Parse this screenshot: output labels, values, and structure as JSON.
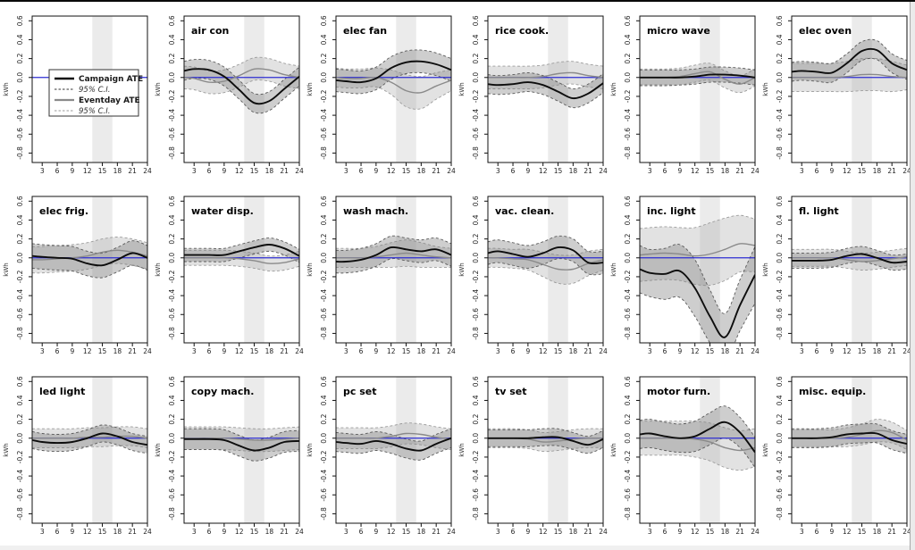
{
  "figure": {
    "description": "Hourly average treatment effects on appliance electricity use",
    "colors": {
      "campaign_line": "#0d0d0d",
      "campaign_ci_edge": "#5a5a5a",
      "campaign_ci_fill": "rgba(125,125,125,0.38)",
      "eventday_line": "#8a8a8a",
      "eventday_ci_edge": "#9c9c9c",
      "eventday_ci_fill": "rgba(178,178,178,0.38)",
      "zero_line": "#2d2dd2",
      "shade_band": "rgba(210,210,210,0.45)",
      "frame": "#111111"
    }
  },
  "chart_data": {
    "type": "line",
    "x": [
      1,
      3,
      6,
      9,
      12,
      15,
      18,
      21,
      24
    ],
    "xlim": [
      1,
      24
    ],
    "ylim": [
      -0.9,
      0.65
    ],
    "xticks": [
      "3",
      "6",
      "9",
      "12",
      "15",
      "18",
      "21",
      "24"
    ],
    "yticks": [
      "0.6",
      "0.4",
      "0.2",
      "0.0",
      "-0.2",
      "-0.4",
      "-0.6",
      "-0.8"
    ],
    "ylabel": "kWh",
    "grid": false,
    "shaded_band_x": [
      13,
      17
    ],
    "legend": {
      "position": "first-panel",
      "items": [
        {
          "label": "Campaign ATE",
          "style": "solid-black"
        },
        {
          "label": "95% C.I.",
          "style": "dashed-black"
        },
        {
          "label": "Eventday ATE",
          "style": "solid-gray"
        },
        {
          "label": "95% C.I.",
          "style": "dashed-gray"
        }
      ]
    },
    "series_names": [
      "Campaign ATE",
      "Eventday ATE"
    ],
    "panels": [
      {
        "title": "air con",
        "campaign": [
          0.07,
          0.09,
          0.08,
          0.01,
          -0.13,
          -0.27,
          -0.25,
          -0.12,
          0.01
        ],
        "campaign_ci": 0.1,
        "eventday": [
          0.0,
          -0.01,
          -0.05,
          -0.04,
          0.02,
          0.09,
          0.08,
          0.03,
          0.0
        ],
        "eventday_ci": 0.12
      },
      {
        "title": "elec fan",
        "campaign": [
          -0.03,
          -0.04,
          -0.05,
          -0.01,
          0.1,
          0.16,
          0.17,
          0.14,
          0.08
        ],
        "campaign_ci": 0.12,
        "eventday": [
          0.0,
          -0.01,
          -0.01,
          0.0,
          -0.05,
          -0.14,
          -0.16,
          -0.09,
          -0.03
        ],
        "eventday_ci": [
          0.1,
          0.1,
          0.1,
          0.1,
          0.13,
          0.17,
          0.17,
          0.14,
          0.11
        ]
      },
      {
        "title": "rice cook.",
        "campaign": [
          -0.07,
          -0.08,
          -0.07,
          -0.05,
          -0.08,
          -0.15,
          -0.22,
          -0.17,
          -0.06
        ],
        "campaign_ci": 0.1,
        "eventday": [
          0.0,
          0.0,
          0.0,
          0.0,
          0.01,
          0.04,
          0.05,
          0.02,
          0.0
        ],
        "eventday_ci": 0.12
      },
      {
        "title": "micro wave",
        "campaign": [
          0.0,
          0.0,
          0.0,
          0.0,
          0.01,
          0.03,
          0.03,
          0.02,
          0.0
        ],
        "campaign_ci": 0.08,
        "eventday": [
          0.0,
          0.0,
          0.0,
          0.01,
          0.04,
          0.06,
          -0.02,
          -0.07,
          0.0
        ],
        "eventday_ci": 0.09
      },
      {
        "title": "elec oven",
        "campaign": [
          0.06,
          0.07,
          0.06,
          0.05,
          0.15,
          0.28,
          0.29,
          0.15,
          0.08
        ],
        "campaign_ci": 0.1,
        "eventday": [
          0.0,
          0.0,
          0.0,
          0.0,
          0.01,
          0.03,
          0.03,
          0.01,
          0.0
        ],
        "eventday_ci": [
          0.15,
          0.15,
          0.15,
          0.15,
          0.16,
          0.17,
          0.17,
          0.16,
          0.13
        ]
      },
      {
        "title": "elec frig.",
        "campaign": [
          0.02,
          0.01,
          0.0,
          -0.01,
          -0.06,
          -0.08,
          -0.02,
          0.05,
          0.0
        ],
        "campaign_ci": 0.13,
        "eventday": [
          -0.02,
          -0.02,
          -0.01,
          0.0,
          0.02,
          0.06,
          0.08,
          0.06,
          0.02
        ],
        "eventday_ci": 0.14
      },
      {
        "title": "water disp.",
        "campaign": [
          0.03,
          0.03,
          0.03,
          0.03,
          0.07,
          0.11,
          0.14,
          0.1,
          0.02
        ],
        "campaign_ci": 0.07,
        "eventday": [
          0.0,
          0.0,
          0.0,
          0.0,
          -0.01,
          -0.03,
          -0.06,
          -0.05,
          -0.01
        ],
        "eventday_ci": 0.08
      },
      {
        "title": "wash mach.",
        "campaign": [
          -0.04,
          -0.04,
          -0.02,
          0.03,
          0.11,
          0.09,
          0.07,
          0.09,
          0.03
        ],
        "campaign_ci": 0.12,
        "eventday": [
          0.0,
          0.0,
          0.0,
          0.01,
          0.03,
          0.05,
          0.03,
          0.01,
          0.0
        ],
        "eventday_ci": [
          0.1,
          0.1,
          0.1,
          0.11,
          0.13,
          0.14,
          0.13,
          0.11,
          0.1
        ]
      },
      {
        "title": "vac. clean.",
        "campaign": [
          0.05,
          0.07,
          0.04,
          0.01,
          0.05,
          0.11,
          0.08,
          -0.05,
          -0.05
        ],
        "campaign_ci": 0.12,
        "eventday": [
          0.0,
          0.0,
          -0.01,
          -0.02,
          -0.07,
          -0.12,
          -0.12,
          -0.06,
          -0.02
        ],
        "eventday_ci": [
          0.1,
          0.1,
          0.1,
          0.11,
          0.13,
          0.15,
          0.15,
          0.13,
          0.11
        ]
      },
      {
        "title": "inc. light",
        "campaign": [
          -0.12,
          -0.16,
          -0.17,
          -0.14,
          -0.32,
          -0.62,
          -0.84,
          -0.5,
          -0.18
        ],
        "campaign_ci": [
          0.25,
          0.25,
          0.27,
          0.28,
          0.3,
          0.28,
          0.25,
          0.27,
          0.3
        ],
        "eventday": [
          0.03,
          0.04,
          0.05,
          0.04,
          0.02,
          0.04,
          0.09,
          0.15,
          0.13
        ],
        "eventday_ci": [
          0.28,
          0.28,
          0.28,
          0.28,
          0.3,
          0.33,
          0.33,
          0.3,
          0.28
        ]
      },
      {
        "title": "fl. light",
        "campaign": [
          -0.03,
          -0.03,
          -0.03,
          -0.02,
          0.02,
          0.04,
          0.0,
          -0.05,
          -0.04
        ],
        "campaign_ci": 0.08,
        "eventday": [
          0.0,
          0.0,
          0.0,
          0.0,
          -0.02,
          -0.04,
          -0.03,
          -0.01,
          0.01
        ],
        "eventday_ci": 0.09
      },
      {
        "title": "led light",
        "campaign": [
          -0.02,
          -0.04,
          -0.05,
          -0.04,
          0.0,
          0.05,
          0.02,
          -0.04,
          -0.07
        ],
        "campaign_ci": 0.09,
        "eventday": [
          0.0,
          0.0,
          0.0,
          0.0,
          0.01,
          0.01,
          0.02,
          0.02,
          0.0
        ],
        "eventday_ci": 0.1
      },
      {
        "title": "copy mach.",
        "campaign": [
          -0.01,
          -0.01,
          -0.01,
          -0.02,
          -0.08,
          -0.13,
          -0.1,
          -0.04,
          -0.03
        ],
        "campaign_ci": 0.11,
        "eventday": [
          0.0,
          0.0,
          0.0,
          0.0,
          -0.01,
          -0.02,
          -0.02,
          -0.01,
          0.0
        ],
        "eventday_ci": 0.12
      },
      {
        "title": "pc set",
        "campaign": [
          -0.04,
          -0.05,
          -0.06,
          -0.03,
          -0.06,
          -0.11,
          -0.13,
          -0.06,
          0.0
        ],
        "campaign_ci": 0.1,
        "eventday": [
          0.0,
          0.0,
          0.0,
          0.0,
          0.02,
          0.05,
          0.04,
          0.01,
          -0.01
        ],
        "eventday_ci": 0.11
      },
      {
        "title": "tv set",
        "campaign": [
          0.0,
          0.0,
          0.0,
          0.0,
          0.01,
          0.01,
          -0.03,
          -0.07,
          -0.01
        ],
        "campaign_ci": 0.09,
        "eventday": [
          0.0,
          0.0,
          0.0,
          -0.01,
          -0.04,
          -0.03,
          -0.01,
          0.0,
          0.0
        ],
        "eventday_ci": 0.1
      },
      {
        "title": "motor furn.",
        "campaign": [
          0.04,
          0.05,
          0.02,
          0.0,
          0.02,
          0.1,
          0.17,
          0.06,
          -0.15
        ],
        "campaign_ci": [
          0.15,
          0.15,
          0.15,
          0.15,
          0.16,
          0.17,
          0.17,
          0.16,
          0.16
        ],
        "eventday": [
          0.0,
          0.0,
          0.0,
          0.0,
          -0.01,
          -0.04,
          -0.1,
          -0.13,
          -0.1
        ],
        "eventday_ci": [
          0.18,
          0.18,
          0.18,
          0.18,
          0.19,
          0.2,
          0.21,
          0.21,
          0.2
        ]
      },
      {
        "title": "misc. equip.",
        "campaign": [
          0.0,
          0.0,
          0.0,
          0.01,
          0.04,
          0.05,
          0.05,
          -0.02,
          -0.06
        ],
        "campaign_ci": 0.1,
        "eventday": [
          0.0,
          0.0,
          0.0,
          0.0,
          0.01,
          0.04,
          0.08,
          0.06,
          -0.02
        ],
        "eventday_ci": [
          0.09,
          0.09,
          0.09,
          0.09,
          0.1,
          0.11,
          0.12,
          0.11,
          0.1
        ]
      }
    ]
  }
}
